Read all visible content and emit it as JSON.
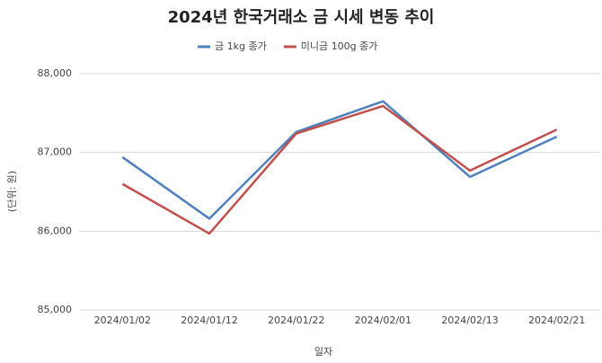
{
  "chart_data": {
    "type": "line",
    "title": "2024년 한국거래소 금 시세 변동 추이",
    "x_label": "일자",
    "y_label": "(단위: 원)",
    "categories": [
      "2024/01/02",
      "2024/01/12",
      "2024/01/22",
      "2024/02/01",
      "2024/02/13",
      "2024/02/21"
    ],
    "series": [
      {
        "name": "금 1kg 종가",
        "color": "#4f81bd",
        "values": [
          86940,
          86160,
          87260,
          87650,
          86690,
          87200
        ]
      },
      {
        "name": "미니금 100g 종가",
        "color": "#c0504d",
        "values": [
          86600,
          85970,
          87240,
          87590,
          86770,
          87290
        ]
      }
    ],
    "ylim": [
      85000,
      88000
    ],
    "yticks": [
      {
        "value": 85000,
        "label": "85,000"
      },
      {
        "value": 86000,
        "label": "86,000"
      },
      {
        "value": 87000,
        "label": "87,000"
      },
      {
        "value": 88000,
        "label": "88,000"
      }
    ],
    "grid": true,
    "legend": "top"
  }
}
